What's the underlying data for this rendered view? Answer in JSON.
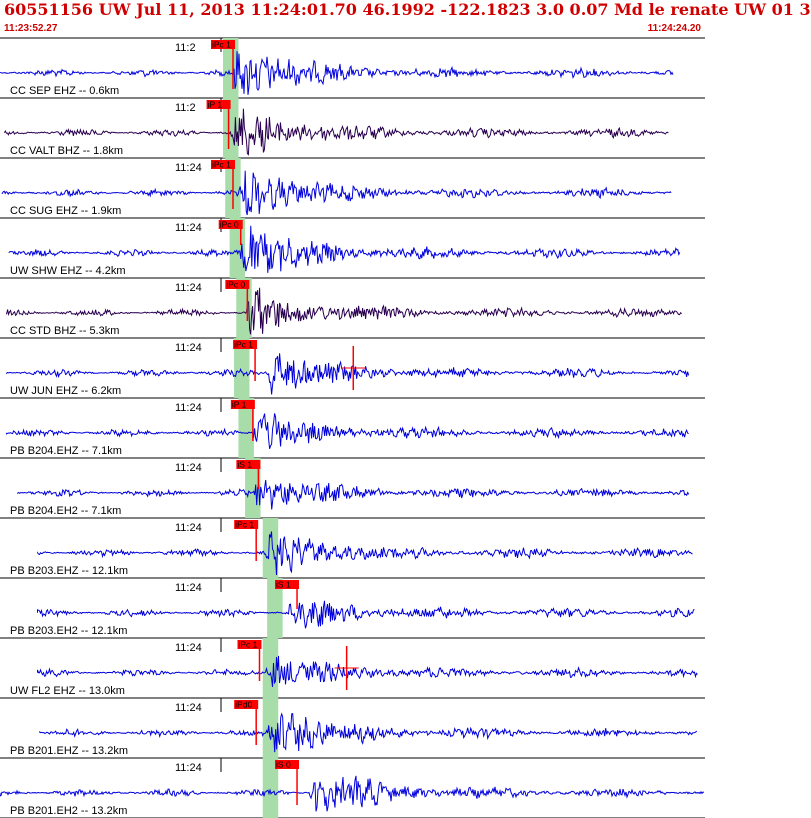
{
  "header": {
    "title": "60551156 UW Jul 11, 2013 11:24:01.70    46.1992 -122.1823  3.0 0.07 Md le renate UW 01   3",
    "start_time": "11:23:52.27",
    "end_time": "11:24:24.20"
  },
  "chart_data": {
    "type": "seismogram",
    "time_range": [
      "11:23:52.27",
      "11:24:24.20"
    ],
    "duration_s": 31.93,
    "colors": {
      "vertical": "#0000dd",
      "broadband": "#2a0050",
      "pick": "#ff0000",
      "window": "#a8dca8",
      "text": "#000000",
      "header": "#d00000"
    },
    "traces": [
      {
        "label": "CC SEP EHZ -- 0.6km",
        "tick_label": "11:2",
        "color": "#0000dd",
        "start_s": 0.0,
        "end_s": 30.5,
        "onset_s": 10.5,
        "amp": 1.0,
        "picks": [
          {
            "label": "iPc 1",
            "t_s": 10.1,
            "len": 1.0
          }
        ],
        "window_s": [
          10.1,
          10.8
        ]
      },
      {
        "label": "CC VALT BHZ -- 1.8km",
        "tick_label": "11:2",
        "color": "#2a0050",
        "start_s": 0.2,
        "end_s": 30.3,
        "onset_s": 10.4,
        "amp": 0.9,
        "picks": [
          {
            "label": "iP 1",
            "t_s": 9.9,
            "len": 1.0
          }
        ],
        "window_s": [
          10.1,
          10.8
        ]
      },
      {
        "label": "CC SUG EHZ -- 1.9km",
        "tick_label": "11:24",
        "color": "#0000dd",
        "start_s": 0.1,
        "end_s": 30.4,
        "onset_s": 10.8,
        "amp": 0.85,
        "picks": [
          {
            "label": "iPc 1",
            "t_s": 10.1,
            "len": 1.0
          }
        ],
        "window_s": [
          10.2,
          10.9
        ]
      },
      {
        "label": "UW SHW EHZ -- 4.2km",
        "tick_label": "11:24",
        "color": "#0000dd",
        "start_s": 0.4,
        "end_s": 30.8,
        "onset_s": 10.8,
        "amp": 0.95,
        "picks": [
          {
            "label": "iPc 0",
            "t_s": 10.45,
            "len": 0.4
          }
        ],
        "window_s": [
          10.4,
          11.1
        ]
      },
      {
        "label": "CC STD BHZ -- 5.3km",
        "tick_label": "11:24",
        "color": "#2a0050",
        "start_s": 0.3,
        "end_s": 30.9,
        "onset_s": 11.1,
        "amp": 0.85,
        "picks": [
          {
            "label": "iPc 0",
            "t_s": 10.75,
            "len": 0.8
          }
        ],
        "window_s": [
          10.7,
          11.4
        ]
      },
      {
        "label": "UW JUN EHZ -- 6.2km",
        "tick_label": "11:24",
        "color": "#0000dd",
        "start_s": 0.3,
        "end_s": 31.2,
        "onset_s": 12.0,
        "amp": 0.75,
        "picks": [
          {
            "label": "iPc 1",
            "t_s": 11.1,
            "len": 0.8
          },
          {
            "label": "",
            "t_s": 16.0,
            "len": 0.8
          }
        ],
        "window_s": [
          10.6,
          11.3
        ]
      },
      {
        "label": "PB B204.EHZ -- 7.1km",
        "tick_label": "11:24",
        "color": "#0000dd",
        "start_s": 0.3,
        "end_s": 31.2,
        "onset_s": 11.4,
        "amp": 0.7,
        "picks": [
          {
            "label": "iP 1",
            "t_s": 11.0,
            "len": 0.8
          }
        ],
        "window_s": [
          10.8,
          11.5
        ]
      },
      {
        "label": "PB B204.EH2 -- 7.1km",
        "tick_label": "11:24",
        "color": "#0000dd",
        "start_s": 0.8,
        "end_s": 31.2,
        "onset_s": 11.4,
        "amp": 0.65,
        "picks": [
          {
            "label": "iS 1",
            "t_s": 11.25,
            "len": 0.5
          }
        ],
        "window_s": [
          11.1,
          11.8
        ]
      },
      {
        "label": "PB B203.EHZ -- 12.1km",
        "tick_label": "11:24",
        "color": "#0000dd",
        "start_s": 1.7,
        "end_s": 31.4,
        "onset_s": 12.0,
        "amp": 0.75,
        "picks": [
          {
            "label": "iPc 1",
            "t_s": 11.15,
            "len": 0.8
          }
        ],
        "window_s": [
          11.9,
          12.6
        ]
      },
      {
        "label": "PB B203.EH2 -- 12.1km",
        "tick_label": "11:24",
        "color": "#0000dd",
        "start_s": 1.7,
        "end_s": 31.5,
        "onset_s": 13.0,
        "amp": 0.55,
        "picks": [
          {
            "label": "iS 1",
            "t_s": 13.0,
            "len": 0.5
          }
        ],
        "window_s": [
          12.1,
          12.8
        ]
      },
      {
        "label": "UW FL2 EHZ -- 13.0km",
        "tick_label": "11:24",
        "color": "#0000dd",
        "start_s": 1.7,
        "end_s": 31.6,
        "onset_s": 12.0,
        "amp": 0.6,
        "picks": [
          {
            "label": "iPc 1",
            "t_s": 11.3,
            "len": 0.8
          },
          {
            "label": "",
            "t_s": 15.7,
            "len": 0.9
          }
        ],
        "window_s": [
          11.9,
          12.6
        ]
      },
      {
        "label": "PB B201.EHZ -- 13.2km",
        "tick_label": "11:24",
        "color": "#0000dd",
        "start_s": 1.8,
        "end_s": 31.6,
        "onset_s": 12.1,
        "amp": 0.9,
        "picks": [
          {
            "label": "iPd0",
            "t_s": 11.15,
            "len": 0.9
          }
        ],
        "window_s": [
          11.9,
          12.6
        ]
      },
      {
        "label": "PB B201.EH2 -- 13.2km",
        "tick_label": "11:24",
        "color": "#0000dd",
        "start_s": 0.0,
        "end_s": 31.9,
        "onset_s": 14.0,
        "amp": 0.85,
        "picks": [
          {
            "label": "iS 0",
            "t_s": 13.0,
            "len": 0.9
          }
        ],
        "window_s": [
          11.9,
          12.6
        ]
      }
    ]
  }
}
